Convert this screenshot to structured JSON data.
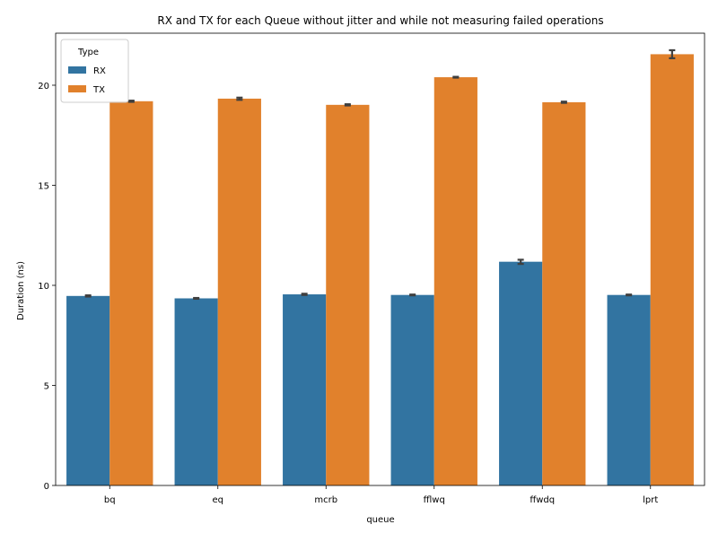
{
  "chart_data": {
    "type": "bar",
    "title": "RX and TX for each Queue without jitter and while not measuring failed operations",
    "xlabel": "queue",
    "ylabel": "Duration (ns)",
    "categories": [
      "bq",
      "eq",
      "mcrb",
      "fflwq",
      "ffwdq",
      "lprt"
    ],
    "ylim": [
      0,
      22.6
    ],
    "yticks": [
      0,
      5,
      10,
      15,
      20
    ],
    "grid": false,
    "legend": {
      "title": "Type",
      "placement": "top-left"
    },
    "series": [
      {
        "name": "RX",
        "color": "#3274a1",
        "values": [
          9.47,
          9.35,
          9.55,
          9.52,
          11.18,
          9.52
        ],
        "error_low": [
          9.44,
          9.33,
          9.52,
          9.5,
          11.07,
          9.5
        ],
        "error_high": [
          9.5,
          9.37,
          9.58,
          9.54,
          11.28,
          9.54
        ]
      },
      {
        "name": "TX",
        "color": "#e1812c",
        "values": [
          19.2,
          19.33,
          19.02,
          20.4,
          19.15,
          21.55
        ],
        "error_low": [
          19.17,
          19.27,
          18.99,
          20.38,
          19.12,
          21.35
        ],
        "error_high": [
          19.23,
          19.38,
          19.05,
          20.42,
          19.18,
          21.75
        ]
      }
    ]
  }
}
